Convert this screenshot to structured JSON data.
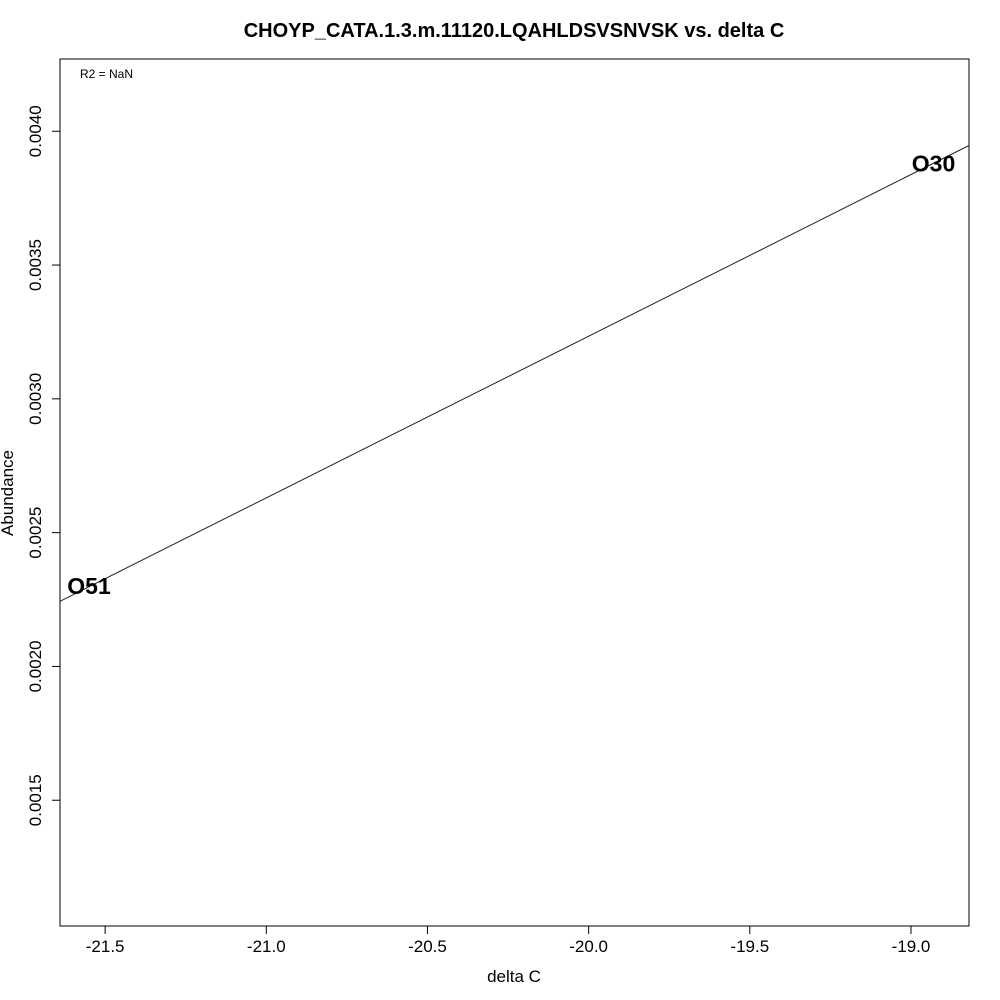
{
  "chart_data": {
    "type": "scatter",
    "title": "CHOYP_CATA.1.3.m.11120.LQAHLDSVSNVSK vs. delta C",
    "xlabel": "delta C",
    "ylabel": "Abundance",
    "annotation": "R2 = NaN",
    "xlim": [
      -21.64,
      -18.82
    ],
    "ylim": [
      0.00103,
      0.00427
    ],
    "x_ticks": [
      -21.5,
      -21.0,
      -20.5,
      -20.0,
      -19.5,
      -19.0
    ],
    "x_tick_labels": [
      "-21.5",
      "-21.0",
      "-20.5",
      "-20.0",
      "-19.5",
      "-19.0"
    ],
    "y_ticks": [
      0.0015,
      0.002,
      0.0025,
      0.003,
      0.0035,
      0.004
    ],
    "y_tick_labels": [
      "0.0015",
      "0.0020",
      "0.0025",
      "0.0030",
      "0.0035",
      "0.0040"
    ],
    "points": [
      {
        "label": "O51",
        "x": -21.55,
        "y": 0.0023
      },
      {
        "label": "O30",
        "x": -18.93,
        "y": 0.00388
      }
    ],
    "fit_line": {
      "slope": 0.000604,
      "intercept": 0.015314
    },
    "grid": false,
    "legend": "none"
  }
}
